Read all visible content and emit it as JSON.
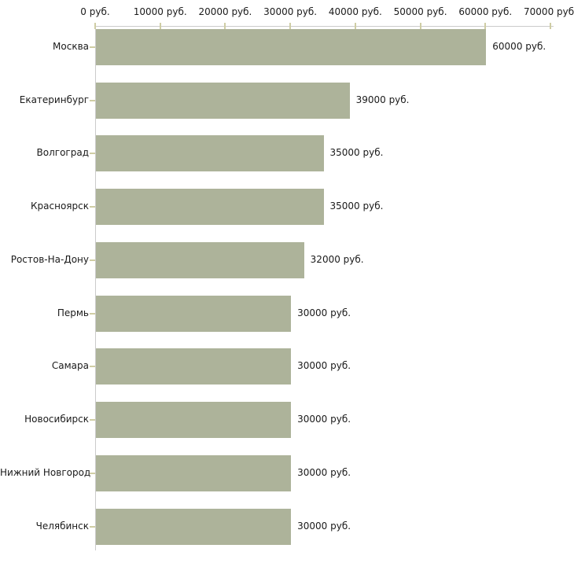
{
  "chart_data": {
    "type": "bar",
    "orientation": "horizontal",
    "title": "",
    "xlabel": "",
    "ylabel": "",
    "legend": "none",
    "grid": false,
    "categories": [
      "Москва",
      "Екатеринбург",
      "Волгоград",
      "Красноярск",
      "Ростов-На-Дону",
      "Пермь",
      "Самара",
      "Новосибирск",
      "Нижний Новгород",
      "Челябинск"
    ],
    "values": [
      60000,
      39000,
      35000,
      35000,
      32000,
      30000,
      30000,
      30000,
      30000,
      30000
    ],
    "value_labels": [
      "60000 руб.",
      "39000 руб.",
      "35000 руб.",
      "35000 руб.",
      "32000 руб.",
      "30000 руб.",
      "30000 руб.",
      "30000 руб.",
      "30000 руб.",
      "30000 руб."
    ],
    "xlim": [
      0,
      70000
    ],
    "x_tick_values": [
      0,
      10000,
      20000,
      30000,
      40000,
      50000,
      60000,
      70000
    ],
    "x_tick_labels": [
      "0 руб.",
      "10000 руб.",
      "20000 руб.",
      "30000 руб.",
      "40000 руб.",
      "50000 руб.",
      "60000 руб.",
      "70000 руб."
    ],
    "unit_suffix": "руб.",
    "colors": {
      "bar": "#adb39a",
      "axis_line": "#cbcbcb",
      "tick_mark": "#cfcda4",
      "text": "#1a1a1a",
      "background": "#ffffff"
    }
  }
}
